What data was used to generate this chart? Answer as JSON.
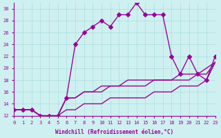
{
  "xlabel": "Windchill (Refroidissement éolien,°C)",
  "xlim": [
    0,
    23
  ],
  "ylim": [
    12,
    31
  ],
  "yticks": [
    12,
    14,
    16,
    18,
    20,
    22,
    24,
    26,
    28,
    30
  ],
  "xticks": [
    0,
    1,
    2,
    3,
    4,
    5,
    6,
    7,
    8,
    9,
    10,
    11,
    12,
    13,
    14,
    15,
    16,
    17,
    18,
    19,
    20,
    21,
    22,
    23
  ],
  "bg_color": "#cff0f0",
  "line_color": "#990099",
  "grid_color": "#aadddd",
  "series1_x": [
    0,
    1,
    2,
    3,
    4,
    5,
    6,
    7,
    8,
    9,
    10,
    11,
    12,
    13,
    14,
    15,
    16,
    17,
    18,
    19,
    20,
    21,
    22,
    23
  ],
  "series1_y": [
    13,
    13,
    13,
    12,
    12,
    12,
    15,
    24,
    26,
    27,
    28,
    27,
    29,
    29,
    31,
    29,
    29,
    29,
    22,
    19,
    22,
    19,
    18,
    22
  ],
  "series2_x": [
    0,
    1,
    2,
    3,
    4,
    5,
    6,
    7,
    8,
    9,
    10,
    11,
    12,
    13,
    14,
    15,
    16,
    17,
    18,
    19,
    20,
    21,
    22,
    23
  ],
  "series2_y": [
    13,
    13,
    13,
    12,
    12,
    12,
    15,
    15,
    16,
    16,
    17,
    17,
    17,
    18,
    18,
    18,
    18,
    18,
    18,
    19,
    19,
    19,
    20,
    21
  ],
  "series3_x": [
    0,
    1,
    2,
    3,
    4,
    5,
    6,
    7,
    8,
    9,
    10,
    11,
    12,
    13,
    14,
    15,
    16,
    17,
    18,
    19,
    20,
    21,
    22,
    23
  ],
  "series3_y": [
    13,
    13,
    13,
    12,
    12,
    12,
    15,
    15,
    16,
    16,
    16,
    17,
    17,
    17,
    17,
    17,
    18,
    18,
    18,
    18,
    18,
    19,
    19,
    21
  ],
  "series4_x": [
    0,
    1,
    2,
    3,
    4,
    5,
    6,
    7,
    8,
    9,
    10,
    11,
    12,
    13,
    14,
    15,
    16,
    17,
    18,
    19,
    20,
    21,
    22,
    23
  ],
  "series4_y": [
    13,
    13,
    13,
    12,
    12,
    12,
    13,
    13,
    14,
    14,
    14,
    15,
    15,
    15,
    15,
    15,
    16,
    16,
    16,
    17,
    17,
    17,
    18,
    21
  ]
}
